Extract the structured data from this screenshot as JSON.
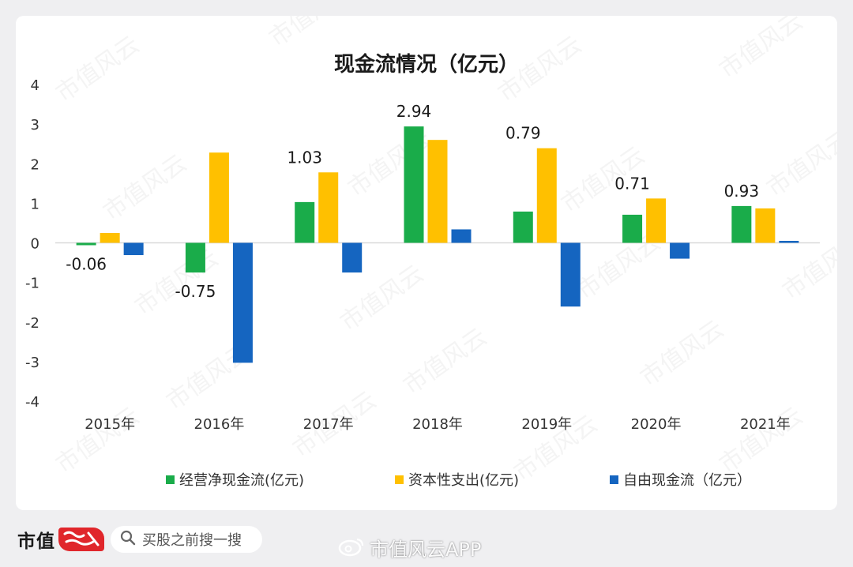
{
  "chart_data": {
    "type": "bar",
    "title": "现金流情况（亿元）",
    "categories": [
      "2015年",
      "2016年",
      "2017年",
      "2018年",
      "2019年",
      "2020年",
      "2021年"
    ],
    "series": [
      {
        "name": "经营净现金流(亿元)",
        "color": "#1aac4a",
        "values": [
          -0.06,
          -0.75,
          1.03,
          2.94,
          0.79,
          0.71,
          0.93
        ]
      },
      {
        "name": "资本性支出(亿元)",
        "color": "#ffc000",
        "values": [
          0.25,
          2.28,
          1.78,
          2.6,
          2.39,
          1.12,
          0.87
        ]
      },
      {
        "name": "自由现金流（亿元）",
        "color": "#1565c0",
        "values": [
          -0.31,
          -3.03,
          -0.75,
          0.34,
          -1.61,
          -0.4,
          0.05
        ]
      }
    ],
    "data_labels": [
      "-0.06",
      "-0.75",
      "1.03",
      "2.94",
      "0.79",
      "0.71",
      "0.93"
    ],
    "yticks": [
      "4",
      "3",
      "2",
      "1",
      "0",
      "-1",
      "-2",
      "-3",
      "-4"
    ],
    "ylim": [
      -4,
      4
    ],
    "grid": false,
    "legend_position": "bottom"
  },
  "footer": {
    "brand": "市值",
    "search_text": "买股之前搜一搜",
    "weibo_text": "市值风云APP"
  },
  "watermark": "市值风云"
}
